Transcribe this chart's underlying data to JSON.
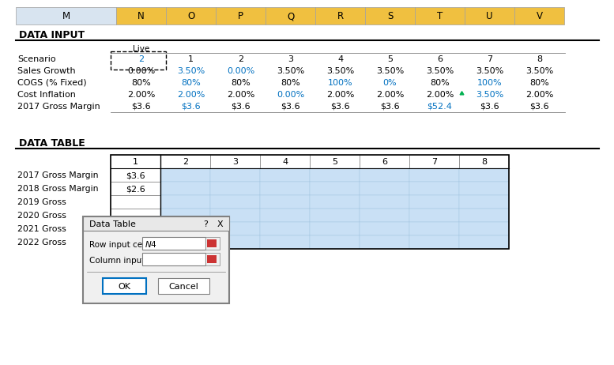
{
  "col_headers": [
    "M",
    "N",
    "O",
    "P",
    "Q",
    "R",
    "S",
    "T",
    "U",
    "V"
  ],
  "col_header_bg": "#F0C040",
  "col_header_m_bg": "#D8E4F0",
  "section1_title": "DATA INPUT",
  "live_label": "Live",
  "input_row_labels": [
    "Scenario",
    "Sales Growth",
    "COGS (% Fixed)",
    "Cost Inflation",
    "2017 Gross Margin"
  ],
  "scenario_row": {
    "live_val": "2",
    "live_color": "#0070C0",
    "vals": [
      "1",
      "2",
      "3",
      "4",
      "5",
      "6",
      "7",
      "8"
    ],
    "val_colors": [
      "#000000",
      "#000000",
      "#000000",
      "#000000",
      "#000000",
      "#000000",
      "#000000",
      "#000000"
    ]
  },
  "sales_growth_row": {
    "live_val": "0.00%",
    "live_color": "#000000",
    "vals": [
      "3.50%",
      "0.00%",
      "3.50%",
      "3.50%",
      "3.50%",
      "3.50%",
      "3.50%",
      "3.50%"
    ],
    "val_colors": [
      "#0070C0",
      "#0070C0",
      "#000000",
      "#000000",
      "#000000",
      "#000000",
      "#000000",
      "#000000"
    ]
  },
  "cogs_row": {
    "live_val": "80%",
    "live_color": "#000000",
    "vals": [
      "80%",
      "80%",
      "80%",
      "100%",
      "0%",
      "80%",
      "100%",
      "80%"
    ],
    "val_colors": [
      "#0070C0",
      "#000000",
      "#000000",
      "#0070C0",
      "#0070C0",
      "#000000",
      "#0070C0",
      "#000000"
    ]
  },
  "cost_inflation_row": {
    "live_val": "2.00%",
    "live_color": "#000000",
    "vals": [
      "2.00%",
      "2.00%",
      "0.00%",
      "2.00%",
      "2.00%",
      "2.00%",
      "3.50%",
      "2.00%"
    ],
    "val_colors": [
      "#0070C0",
      "#000000",
      "#0070C0",
      "#000000",
      "#000000",
      "#000000",
      "#0070C0",
      "#000000"
    ]
  },
  "gross_margin_row": {
    "live_val": "$3.6",
    "live_color": "#000000",
    "vals": [
      "$3.6",
      "$3.6",
      "$3.6",
      "$3.6",
      "$3.6",
      "$52.4",
      "$3.6",
      "$3.6"
    ],
    "val_colors": [
      "#0070C0",
      "#000000",
      "#000000",
      "#000000",
      "#000000",
      "#0070C0",
      "#000000",
      "#000000"
    ]
  },
  "section2_title": "DATA TABLE",
  "table_row_labels": [
    "2017 Gross Margin",
    "2018 Gross Margin",
    "2019 Gross",
    "2020 Gross",
    "2021 Gross",
    "2022 Gross"
  ],
  "table_first_col_vals": [
    "$3.6",
    "$2.6",
    "",
    "",
    "",
    ""
  ],
  "table_fill_color": "#C9E0F5",
  "dialog_title": "Data Table",
  "dialog_row_input": "Row input cell:",
  "dialog_row_val": "$N$4",
  "dialog_col_input": "Column input cell:",
  "dialog_ok": "OK",
  "dialog_cancel": "Cancel",
  "bg_color": "#FFFFFF",
  "green_triangle_color": "#00B050"
}
